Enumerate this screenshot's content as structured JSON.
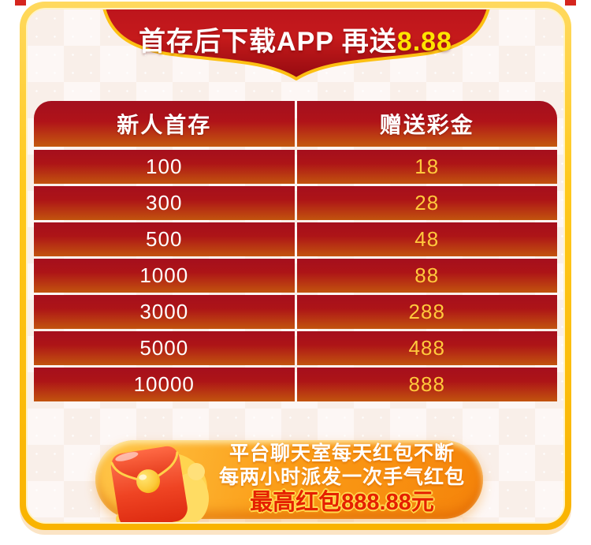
{
  "banner": {
    "text_main": "首存后下载APP 再送",
    "text_highlight": "8.88"
  },
  "table": {
    "headers": [
      "新人首存",
      "赠送彩金"
    ],
    "rows": [
      [
        "100",
        "18"
      ],
      [
        "300",
        "28"
      ],
      [
        "500",
        "48"
      ],
      [
        "1000",
        "88"
      ],
      [
        "3000",
        "288"
      ],
      [
        "5000",
        "488"
      ],
      [
        "10000",
        "888"
      ]
    ]
  },
  "promo": {
    "line1": "平台聊天室每天红包不断",
    "line2": "每两小时派发一次手气红包",
    "line3": "最高红包888.88元",
    "icon": "red-envelope-icon"
  },
  "colors": {
    "frame_gold": "#f9b300",
    "banner_red_top": "#bc141d",
    "banner_red_bottom": "#940a10",
    "row_red_top": "#a50f1d",
    "row_orange_bottom": "#c2540e",
    "bonus_yellow": "#ffc93c",
    "banner_highlight_yellow": "#ffe400",
    "pill_orange": "#fb9d17",
    "promo_red_text": "#e52000",
    "background_cream": "#f9efe9"
  }
}
